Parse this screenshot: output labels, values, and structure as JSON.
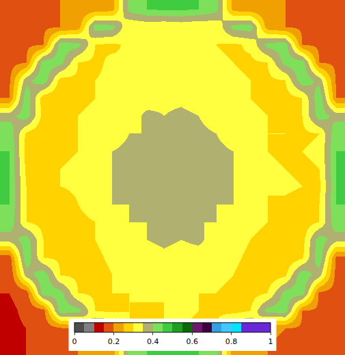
{
  "chart_data": {
    "type": "heatmap",
    "cells": [
      [
        0.17,
        0.18,
        0.19,
        0.2,
        0.21,
        0.22,
        0.23,
        0.42,
        0.45,
        0.46,
        0.46,
        0.45,
        0.42,
        0.23,
        0.22,
        0.21,
        0.2,
        0.19,
        0.18,
        0.17
      ],
      [
        0.17,
        0.18,
        0.19,
        0.2,
        0.22,
        0.43,
        0.42,
        0.3,
        0.31,
        0.3,
        0.31,
        0.3,
        0.31,
        0.42,
        0.43,
        0.22,
        0.2,
        0.19,
        0.18,
        0.17
      ],
      [
        0.18,
        0.19,
        0.2,
        0.43,
        0.42,
        0.3,
        0.29,
        0.31,
        0.3,
        0.31,
        0.3,
        0.31,
        0.3,
        0.29,
        0.31,
        0.42,
        0.43,
        0.2,
        0.19,
        0.18
      ],
      [
        0.18,
        0.2,
        0.43,
        0.42,
        0.3,
        0.29,
        0.31,
        0.3,
        0.31,
        0.32,
        0.31,
        0.3,
        0.31,
        0.3,
        0.29,
        0.3,
        0.42,
        0.43,
        0.2,
        0.19
      ],
      [
        0.19,
        0.38,
        0.44,
        0.28,
        0.29,
        0.3,
        0.31,
        0.3,
        0.32,
        0.33,
        0.33,
        0.32,
        0.3,
        0.31,
        0.3,
        0.29,
        0.3,
        0.44,
        0.38,
        0.19
      ],
      [
        0.2,
        0.44,
        0.27,
        0.26,
        0.29,
        0.3,
        0.31,
        0.33,
        0.33,
        0.34,
        0.34,
        0.33,
        0.33,
        0.31,
        0.3,
        0.29,
        0.28,
        0.3,
        0.44,
        0.2
      ],
      [
        0.38,
        0.43,
        0.28,
        0.25,
        0.3,
        0.31,
        0.33,
        0.33,
        0.36,
        0.35,
        0.36,
        0.35,
        0.33,
        0.33,
        0.31,
        0.3,
        0.29,
        0.3,
        0.43,
        0.38
      ],
      [
        0.44,
        0.29,
        0.26,
        0.27,
        0.3,
        0.32,
        0.33,
        0.35,
        0.35,
        0.36,
        0.35,
        0.36,
        0.35,
        0.33,
        0.32,
        0.3,
        0.3,
        0.29,
        0.3,
        0.44
      ],
      [
        0.45,
        0.28,
        0.25,
        0.29,
        0.3,
        0.33,
        0.35,
        0.36,
        0.35,
        0.36,
        0.36,
        0.35,
        0.36,
        0.35,
        0.33,
        0.3,
        0.29,
        0.3,
        0.31,
        0.45
      ],
      [
        0.45,
        0.29,
        0.27,
        0.3,
        0.31,
        0.33,
        0.35,
        0.35,
        0.36,
        0.37,
        0.36,
        0.36,
        0.35,
        0.35,
        0.33,
        0.31,
        0.3,
        0.29,
        0.3,
        0.45
      ],
      [
        0.45,
        0.3,
        0.28,
        0.3,
        0.31,
        0.33,
        0.35,
        0.36,
        0.36,
        0.36,
        0.37,
        0.35,
        0.36,
        0.35,
        0.33,
        0.3,
        0.31,
        0.3,
        0.29,
        0.45
      ],
      [
        0.45,
        0.3,
        0.29,
        0.27,
        0.3,
        0.32,
        0.35,
        0.35,
        0.36,
        0.35,
        0.36,
        0.36,
        0.35,
        0.35,
        0.32,
        0.3,
        0.29,
        0.28,
        0.3,
        0.45
      ],
      [
        0.44,
        0.3,
        0.28,
        0.26,
        0.29,
        0.3,
        0.32,
        0.35,
        0.35,
        0.36,
        0.35,
        0.35,
        0.35,
        0.32,
        0.31,
        0.3,
        0.28,
        0.27,
        0.3,
        0.44
      ],
      [
        0.37,
        0.43,
        0.3,
        0.27,
        0.28,
        0.3,
        0.32,
        0.33,
        0.35,
        0.36,
        0.35,
        0.36,
        0.33,
        0.32,
        0.3,
        0.29,
        0.27,
        0.28,
        0.43,
        0.37
      ],
      [
        0.17,
        0.44,
        0.3,
        0.29,
        0.27,
        0.29,
        0.31,
        0.33,
        0.33,
        0.34,
        0.33,
        0.33,
        0.32,
        0.31,
        0.29,
        0.27,
        0.26,
        0.29,
        0.44,
        0.19
      ],
      [
        0.15,
        0.37,
        0.44,
        0.3,
        0.29,
        0.28,
        0.3,
        0.31,
        0.32,
        0.32,
        0.33,
        0.32,
        0.31,
        0.3,
        0.28,
        0.27,
        0.29,
        0.44,
        0.37,
        0.18
      ],
      [
        0.15,
        0.17,
        0.43,
        0.42,
        0.3,
        0.29,
        0.3,
        0.3,
        0.31,
        0.3,
        0.31,
        0.3,
        0.3,
        0.29,
        0.28,
        0.3,
        0.42,
        0.43,
        0.19,
        0.18
      ],
      [
        0.14,
        0.16,
        0.18,
        0.43,
        0.42,
        0.3,
        0.29,
        0.3,
        0.29,
        0.3,
        0.31,
        0.3,
        0.29,
        0.28,
        0.3,
        0.42,
        0.43,
        0.2,
        0.19,
        0.18
      ],
      [
        0.14,
        0.15,
        0.17,
        0.19,
        0.21,
        0.43,
        0.42,
        0.3,
        0.29,
        0.3,
        0.3,
        0.29,
        0.3,
        0.42,
        0.43,
        0.21,
        0.2,
        0.19,
        0.18,
        0.17
      ],
      [
        0.14,
        0.15,
        0.16,
        0.18,
        0.2,
        0.21,
        0.22,
        0.42,
        0.45,
        0.46,
        0.46,
        0.45,
        0.42,
        0.22,
        0.21,
        0.2,
        0.19,
        0.18,
        0.18,
        0.17
      ]
    ],
    "zlim": [
      0,
      1
    ],
    "zticks": [
      0,
      0.2,
      0.4,
      0.6,
      0.8,
      1
    ],
    "tick_labels": false
  }
}
